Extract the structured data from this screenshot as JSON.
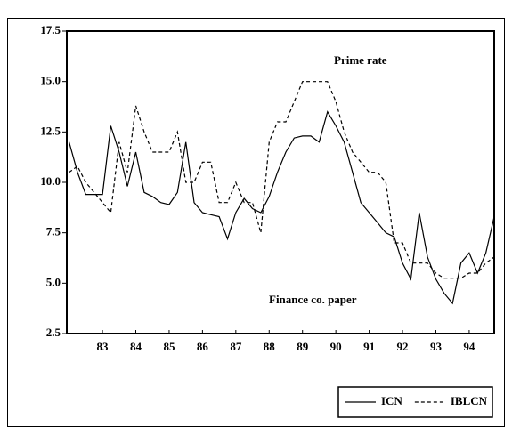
{
  "chart_data": {
    "type": "line",
    "annotations": [
      "Prime rate",
      "Finance co. paper"
    ],
    "x": [
      82.5,
      82.75,
      83.0,
      83.25,
      83.5,
      83.75,
      84.0,
      84.25,
      84.5,
      84.75,
      85.0,
      85.25,
      85.5,
      85.75,
      86.0,
      86.25,
      86.5,
      86.75,
      87.0,
      87.25,
      87.5,
      87.75,
      88.0,
      88.25,
      88.5,
      88.75,
      89.0,
      89.25,
      89.5,
      89.75,
      90.0,
      90.25,
      90.5,
      90.75,
      91.0,
      91.25,
      91.5,
      91.75,
      92.0,
      92.25,
      92.5,
      92.75,
      93.0,
      93.25,
      93.5,
      93.75,
      94.0,
      94.25,
      94.5,
      94.75,
      95.0,
      95.25
    ],
    "series": [
      {
        "name": "ICN",
        "color": "#000000",
        "dash": "solid",
        "values": [
          12.0,
          10.5,
          9.4,
          9.4,
          9.4,
          12.8,
          11.5,
          9.8,
          11.5,
          9.5,
          9.3,
          9.0,
          8.9,
          9.5,
          12.0,
          9.0,
          8.5,
          8.4,
          8.3,
          7.2,
          8.5,
          9.2,
          8.7,
          8.5,
          9.3,
          10.5,
          11.5,
          12.2,
          12.3,
          12.3,
          12.0,
          13.5,
          12.8,
          12.0,
          10.5,
          9.0,
          8.5,
          8.0,
          7.5,
          7.3,
          6.0,
          5.2,
          8.5,
          6.3,
          5.2,
          4.5,
          4.0,
          6.0,
          6.5,
          5.5,
          6.5,
          8.3
        ]
      },
      {
        "name": "IBLCN",
        "color": "#000000",
        "dash": "dashed",
        "values": [
          10.5,
          10.8,
          10.0,
          9.5,
          9.0,
          8.5,
          12.0,
          10.5,
          13.8,
          12.5,
          11.5,
          11.5,
          11.5,
          12.5,
          10.0,
          10.0,
          11.0,
          11.0,
          9.0,
          9.0,
          10.0,
          9.0,
          9.0,
          7.5,
          12.0,
          13.0,
          13.0,
          14.0,
          15.0,
          15.0,
          15.0,
          15.0,
          14.0,
          12.5,
          11.5,
          11.0,
          10.5,
          10.5,
          10.0,
          7.0,
          7.0,
          6.0,
          6.0,
          6.0,
          5.5,
          5.25,
          5.25,
          5.25,
          5.5,
          5.5,
          6.0,
          6.3
        ]
      }
    ],
    "xlim": [
      82.43,
      95.25
    ],
    "xticks": [
      {
        "value": 83.5,
        "label": "83"
      },
      {
        "value": 84.5,
        "label": "84"
      },
      {
        "value": 85.5,
        "label": "85"
      },
      {
        "value": 86.5,
        "label": "86"
      },
      {
        "value": 87.5,
        "label": "87"
      },
      {
        "value": 88.5,
        "label": "88"
      },
      {
        "value": 89.5,
        "label": "89"
      },
      {
        "value": 90.5,
        "label": "90"
      },
      {
        "value": 91.5,
        "label": "91"
      },
      {
        "value": 92.5,
        "label": "92"
      },
      {
        "value": 93.5,
        "label": "93"
      },
      {
        "value": 94.5,
        "label": "94"
      }
    ],
    "ylim": [
      2.5,
      17.5
    ],
    "yticks": [
      2.5,
      {
        "value": 5,
        "label": "5.0"
      },
      7.5,
      {
        "value": 10,
        "label": "10.0"
      },
      12.5,
      {
        "value": 15,
        "label": "15.0"
      },
      17.5
    ],
    "legend": "bottom-right"
  }
}
